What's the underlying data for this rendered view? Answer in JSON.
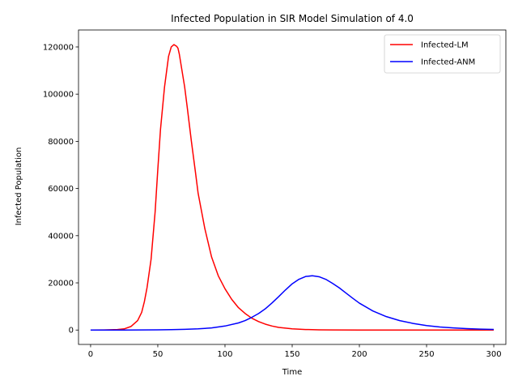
{
  "chart_data": {
    "type": "line",
    "title": "Infected Population in SIR Model Simulation of 4.0",
    "xlabel": "Time",
    "ylabel": "Infected Population",
    "xlim": [
      -9,
      309
    ],
    "ylim": [
      -6100,
      127200
    ],
    "xticks": [
      0,
      50,
      100,
      150,
      200,
      250,
      300
    ],
    "yticks": [
      0,
      20000,
      40000,
      60000,
      80000,
      100000,
      120000
    ],
    "grid": false,
    "legend": "top-right",
    "series": [
      {
        "name": "Infected-LM",
        "color": "#ff0000",
        "x": [
          0,
          10,
          20,
          25,
          30,
          35,
          38,
          40,
          42,
          45,
          48,
          50,
          52,
          55,
          58,
          60,
          62,
          64,
          65,
          66,
          68,
          70,
          72,
          75,
          78,
          80,
          85,
          90,
          95,
          100,
          105,
          110,
          115,
          120,
          125,
          130,
          135,
          140,
          150,
          160,
          170,
          180,
          200,
          225,
          250,
          275,
          300
        ],
        "y": [
          5,
          30,
          200,
          500,
          1500,
          4000,
          7500,
          12000,
          18000,
          30000,
          50000,
          68000,
          85000,
          103000,
          116000,
          120000,
          121000,
          120300,
          119500,
          117000,
          110000,
          103000,
          94000,
          80000,
          67000,
          58000,
          43000,
          31000,
          23000,
          17500,
          13000,
          9500,
          7000,
          5000,
          3600,
          2500,
          1700,
          1100,
          500,
          230,
          100,
          45,
          10,
          2,
          0,
          0,
          0
        ]
      },
      {
        "name": "Infected-ANM",
        "color": "#0000ff",
        "x": [
          0,
          25,
          50,
          60,
          70,
          80,
          90,
          100,
          110,
          115,
          120,
          125,
          130,
          135,
          140,
          145,
          150,
          155,
          160,
          165,
          170,
          175,
          180,
          185,
          190,
          195,
          200,
          210,
          220,
          230,
          240,
          250,
          260,
          270,
          280,
          290,
          300
        ],
        "y": [
          0,
          20,
          100,
          170,
          300,
          500,
          900,
          1700,
          3000,
          4000,
          5400,
          7000,
          9000,
          11500,
          14200,
          17000,
          19600,
          21500,
          22700,
          23000,
          22600,
          21500,
          19800,
          17900,
          15700,
          13500,
          11400,
          8100,
          5700,
          4000,
          2800,
          1900,
          1300,
          900,
          600,
          400,
          270
        ]
      }
    ]
  }
}
